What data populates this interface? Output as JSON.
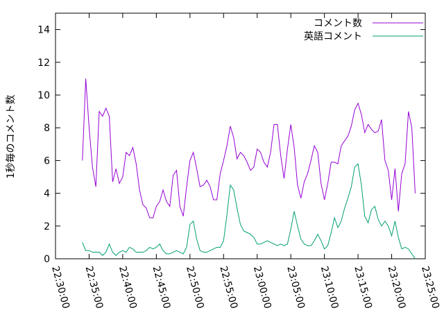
{
  "chart_data": {
    "type": "line",
    "ylabel": "1秒毎のコメント数",
    "xlabel": "",
    "title": "",
    "ylim": [
      0,
      15
    ],
    "yticks": [
      0,
      2,
      4,
      6,
      8,
      10,
      12,
      14
    ],
    "xlim": [
      "22:30:00",
      "23:25:00"
    ],
    "xticks": [
      "22:30:00",
      "22:35:00",
      "22:40:00",
      "22:45:00",
      "22:50:00",
      "22:55:00",
      "23:00:00",
      "23:05:00",
      "23:10:00",
      "23:15:00",
      "23:20:00",
      "23:25:00"
    ],
    "grid": false,
    "legend_position": "top-right",
    "series": [
      {
        "name": "コメント数",
        "color": "#9400d3",
        "points": [
          [
            "22:34:00",
            6.0
          ],
          [
            "22:34:30",
            11.0
          ],
          [
            "22:35:00",
            8.0
          ],
          [
            "22:35:30",
            5.6
          ],
          [
            "22:36:00",
            4.4
          ],
          [
            "22:36:30",
            9.0
          ],
          [
            "22:37:00",
            8.7
          ],
          [
            "22:37:30",
            9.2
          ],
          [
            "22:38:00",
            8.7
          ],
          [
            "22:38:30",
            4.7
          ],
          [
            "22:39:00",
            5.5
          ],
          [
            "22:39:30",
            4.6
          ],
          [
            "22:40:00",
            5.0
          ],
          [
            "22:40:30",
            6.5
          ],
          [
            "22:41:00",
            6.3
          ],
          [
            "22:41:30",
            6.8
          ],
          [
            "22:42:00",
            5.8
          ],
          [
            "22:42:30",
            4.2
          ],
          [
            "22:43:00",
            3.3
          ],
          [
            "22:43:30",
            3.1
          ],
          [
            "22:44:00",
            2.5
          ],
          [
            "22:44:30",
            2.5
          ],
          [
            "22:45:00",
            3.2
          ],
          [
            "22:45:30",
            3.5
          ],
          [
            "22:46:00",
            4.2
          ],
          [
            "22:46:30",
            3.5
          ],
          [
            "22:47:00",
            3.2
          ],
          [
            "22:47:30",
            5.1
          ],
          [
            "22:48:00",
            5.4
          ],
          [
            "22:48:30",
            3.2
          ],
          [
            "22:49:00",
            2.6
          ],
          [
            "22:49:30",
            4.4
          ],
          [
            "22:50:00",
            6.0
          ],
          [
            "22:50:30",
            6.5
          ],
          [
            "22:51:00",
            5.5
          ],
          [
            "22:51:30",
            4.4
          ],
          [
            "22:52:00",
            4.5
          ],
          [
            "22:52:30",
            4.8
          ],
          [
            "22:53:00",
            4.4
          ],
          [
            "22:53:30",
            3.6
          ],
          [
            "22:54:00",
            3.6
          ],
          [
            "22:54:30",
            5.2
          ],
          [
            "22:55:00",
            6.0
          ],
          [
            "22:55:30",
            6.9
          ],
          [
            "22:56:00",
            8.1
          ],
          [
            "22:56:30",
            7.4
          ],
          [
            "22:57:00",
            6.1
          ],
          [
            "22:57:30",
            6.5
          ],
          [
            "22:58:00",
            6.3
          ],
          [
            "22:58:30",
            5.9
          ],
          [
            "22:59:00",
            5.4
          ],
          [
            "22:59:30",
            5.6
          ],
          [
            "23:00:00",
            6.7
          ],
          [
            "23:00:30",
            6.5
          ],
          [
            "23:01:00",
            5.9
          ],
          [
            "23:01:30",
            5.6
          ],
          [
            "23:02:00",
            6.5
          ],
          [
            "23:02:30",
            8.2
          ],
          [
            "23:03:00",
            8.2
          ],
          [
            "23:03:30",
            6.3
          ],
          [
            "23:04:00",
            4.9
          ],
          [
            "23:04:30",
            6.7
          ],
          [
            "23:05:00",
            8.2
          ],
          [
            "23:05:30",
            6.8
          ],
          [
            "23:06:00",
            4.5
          ],
          [
            "23:06:30",
            3.7
          ],
          [
            "23:07:00",
            4.7
          ],
          [
            "23:07:30",
            5.2
          ],
          [
            "23:08:00",
            6.0
          ],
          [
            "23:08:30",
            6.9
          ],
          [
            "23:09:00",
            6.5
          ],
          [
            "23:09:30",
            4.6
          ],
          [
            "23:10:00",
            3.6
          ],
          [
            "23:10:30",
            4.6
          ],
          [
            "23:11:00",
            5.9
          ],
          [
            "23:11:30",
            5.9
          ],
          [
            "23:12:00",
            5.8
          ],
          [
            "23:12:30",
            6.9
          ],
          [
            "23:13:00",
            7.2
          ],
          [
            "23:13:30",
            7.5
          ],
          [
            "23:14:00",
            8.1
          ],
          [
            "23:14:30",
            9.1
          ],
          [
            "23:15:00",
            9.5
          ],
          [
            "23:15:30",
            8.8
          ],
          [
            "23:16:00",
            7.7
          ],
          [
            "23:16:30",
            8.2
          ],
          [
            "23:17:00",
            7.9
          ],
          [
            "23:17:30",
            7.7
          ],
          [
            "23:18:00",
            7.8
          ],
          [
            "23:18:30",
            8.5
          ],
          [
            "23:19:00",
            6.0
          ],
          [
            "23:19:30",
            5.4
          ],
          [
            "23:20:00",
            3.6
          ],
          [
            "23:20:30",
            5.5
          ],
          [
            "23:21:00",
            2.9
          ],
          [
            "23:21:30",
            5.2
          ],
          [
            "23:22:00",
            5.8
          ],
          [
            "23:22:30",
            9.0
          ],
          [
            "23:23:00",
            8.0
          ],
          [
            "23:23:30",
            4.0
          ]
        ]
      },
      {
        "name": "英語コメント",
        "color": "#009e73",
        "points": [
          [
            "22:34:00",
            1.0
          ],
          [
            "22:34:30",
            0.5
          ],
          [
            "22:35:00",
            0.5
          ],
          [
            "22:35:30",
            0.4
          ],
          [
            "22:36:00",
            0.4
          ],
          [
            "22:36:30",
            0.4
          ],
          [
            "22:37:00",
            0.2
          ],
          [
            "22:37:30",
            0.4
          ],
          [
            "22:38:00",
            0.9
          ],
          [
            "22:38:30",
            0.4
          ],
          [
            "22:39:00",
            0.2
          ],
          [
            "22:39:30",
            0.4
          ],
          [
            "22:40:00",
            0.5
          ],
          [
            "22:40:30",
            0.4
          ],
          [
            "22:41:00",
            0.7
          ],
          [
            "22:41:30",
            0.6
          ],
          [
            "22:42:00",
            0.4
          ],
          [
            "22:42:30",
            0.4
          ],
          [
            "22:43:00",
            0.4
          ],
          [
            "22:43:30",
            0.5
          ],
          [
            "22:44:00",
            0.7
          ],
          [
            "22:44:30",
            0.6
          ],
          [
            "22:45:00",
            0.7
          ],
          [
            "22:45:30",
            0.9
          ],
          [
            "22:46:00",
            0.5
          ],
          [
            "22:46:30",
            0.3
          ],
          [
            "22:47:00",
            0.3
          ],
          [
            "22:47:30",
            0.4
          ],
          [
            "22:48:00",
            0.5
          ],
          [
            "22:48:30",
            0.4
          ],
          [
            "22:49:00",
            0.3
          ],
          [
            "22:49:30",
            0.7
          ],
          [
            "22:50:00",
            2.1
          ],
          [
            "22:50:30",
            2.3
          ],
          [
            "22:51:00",
            1.2
          ],
          [
            "22:51:30",
            0.5
          ],
          [
            "22:52:00",
            0.4
          ],
          [
            "22:52:30",
            0.4
          ],
          [
            "22:53:00",
            0.5
          ],
          [
            "22:53:30",
            0.6
          ],
          [
            "22:54:00",
            0.7
          ],
          [
            "22:54:30",
            0.7
          ],
          [
            "22:55:00",
            1.1
          ],
          [
            "22:55:30",
            2.7
          ],
          [
            "22:56:00",
            4.5
          ],
          [
            "22:56:30",
            4.2
          ],
          [
            "22:57:00",
            3.1
          ],
          [
            "22:57:30",
            2.1
          ],
          [
            "22:58:00",
            1.7
          ],
          [
            "22:58:30",
            1.6
          ],
          [
            "22:59:00",
            1.5
          ],
          [
            "22:59:30",
            1.3
          ],
          [
            "23:00:00",
            0.9
          ],
          [
            "23:00:30",
            0.9
          ],
          [
            "23:01:00",
            1.0
          ],
          [
            "23:01:30",
            1.1
          ],
          [
            "23:02:00",
            1.0
          ],
          [
            "23:02:30",
            0.9
          ],
          [
            "23:03:00",
            0.8
          ],
          [
            "23:03:30",
            0.9
          ],
          [
            "23:04:00",
            0.8
          ],
          [
            "23:04:30",
            0.9
          ],
          [
            "23:05:00",
            1.8
          ],
          [
            "23:05:30",
            2.9
          ],
          [
            "23:06:00",
            2.0
          ],
          [
            "23:06:30",
            1.2
          ],
          [
            "23:07:00",
            0.9
          ],
          [
            "23:07:30",
            0.8
          ],
          [
            "23:08:00",
            0.8
          ],
          [
            "23:08:30",
            1.1
          ],
          [
            "23:09:00",
            1.5
          ],
          [
            "23:09:30",
            1.1
          ],
          [
            "23:10:00",
            0.6
          ],
          [
            "23:10:30",
            0.8
          ],
          [
            "23:11:00",
            1.6
          ],
          [
            "23:11:30",
            2.5
          ],
          [
            "23:12:00",
            1.9
          ],
          [
            "23:12:30",
            2.3
          ],
          [
            "23:13:00",
            3.1
          ],
          [
            "23:13:30",
            3.7
          ],
          [
            "23:14:00",
            4.4
          ],
          [
            "23:14:30",
            5.6
          ],
          [
            "23:15:00",
            5.8
          ],
          [
            "23:15:30",
            4.5
          ],
          [
            "23:16:00",
            2.6
          ],
          [
            "23:16:30",
            2.2
          ],
          [
            "23:17:00",
            3.0
          ],
          [
            "23:17:30",
            3.2
          ],
          [
            "23:18:00",
            2.4
          ],
          [
            "23:18:30",
            2.0
          ],
          [
            "23:19:00",
            2.3
          ],
          [
            "23:19:30",
            2.0
          ],
          [
            "23:20:00",
            1.4
          ],
          [
            "23:20:30",
            2.3
          ],
          [
            "23:21:00",
            1.3
          ],
          [
            "23:21:30",
            0.6
          ],
          [
            "23:22:00",
            0.7
          ],
          [
            "23:22:30",
            0.6
          ],
          [
            "23:23:00",
            0.3
          ],
          [
            "23:23:30",
            0.0
          ]
        ]
      }
    ]
  }
}
